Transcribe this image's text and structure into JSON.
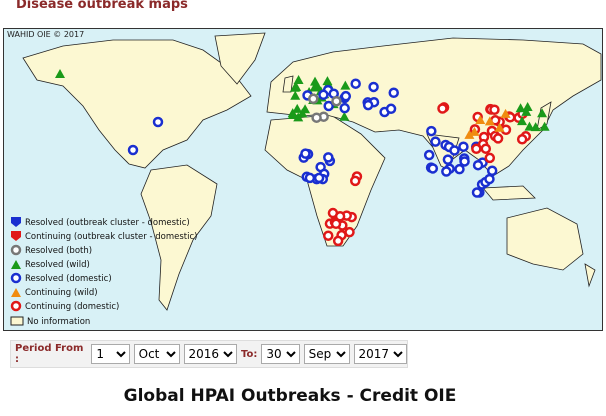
{
  "header": {
    "title": "Disease outbreak maps"
  },
  "map": {
    "credit": "WAHID OIE © 2017",
    "legend": [
      "Resolved (outbreak cluster - domestic)",
      "Continuing (outbreak cluster - domestic)",
      "Resolved (both)",
      "Resolved (wild)",
      "Resolved (domestic)",
      "Continuing (wild)",
      "Continuing (domestic)",
      "No information"
    ]
  },
  "form": {
    "from_label": "Period From :",
    "from_day": "1",
    "from_month": "Oct",
    "from_year": "2016",
    "to_label": "To:",
    "to_day": "30",
    "to_month": "Sep",
    "to_year": "2017"
  },
  "caption": "Global HPAI Outbreaks - Credit OIE"
}
